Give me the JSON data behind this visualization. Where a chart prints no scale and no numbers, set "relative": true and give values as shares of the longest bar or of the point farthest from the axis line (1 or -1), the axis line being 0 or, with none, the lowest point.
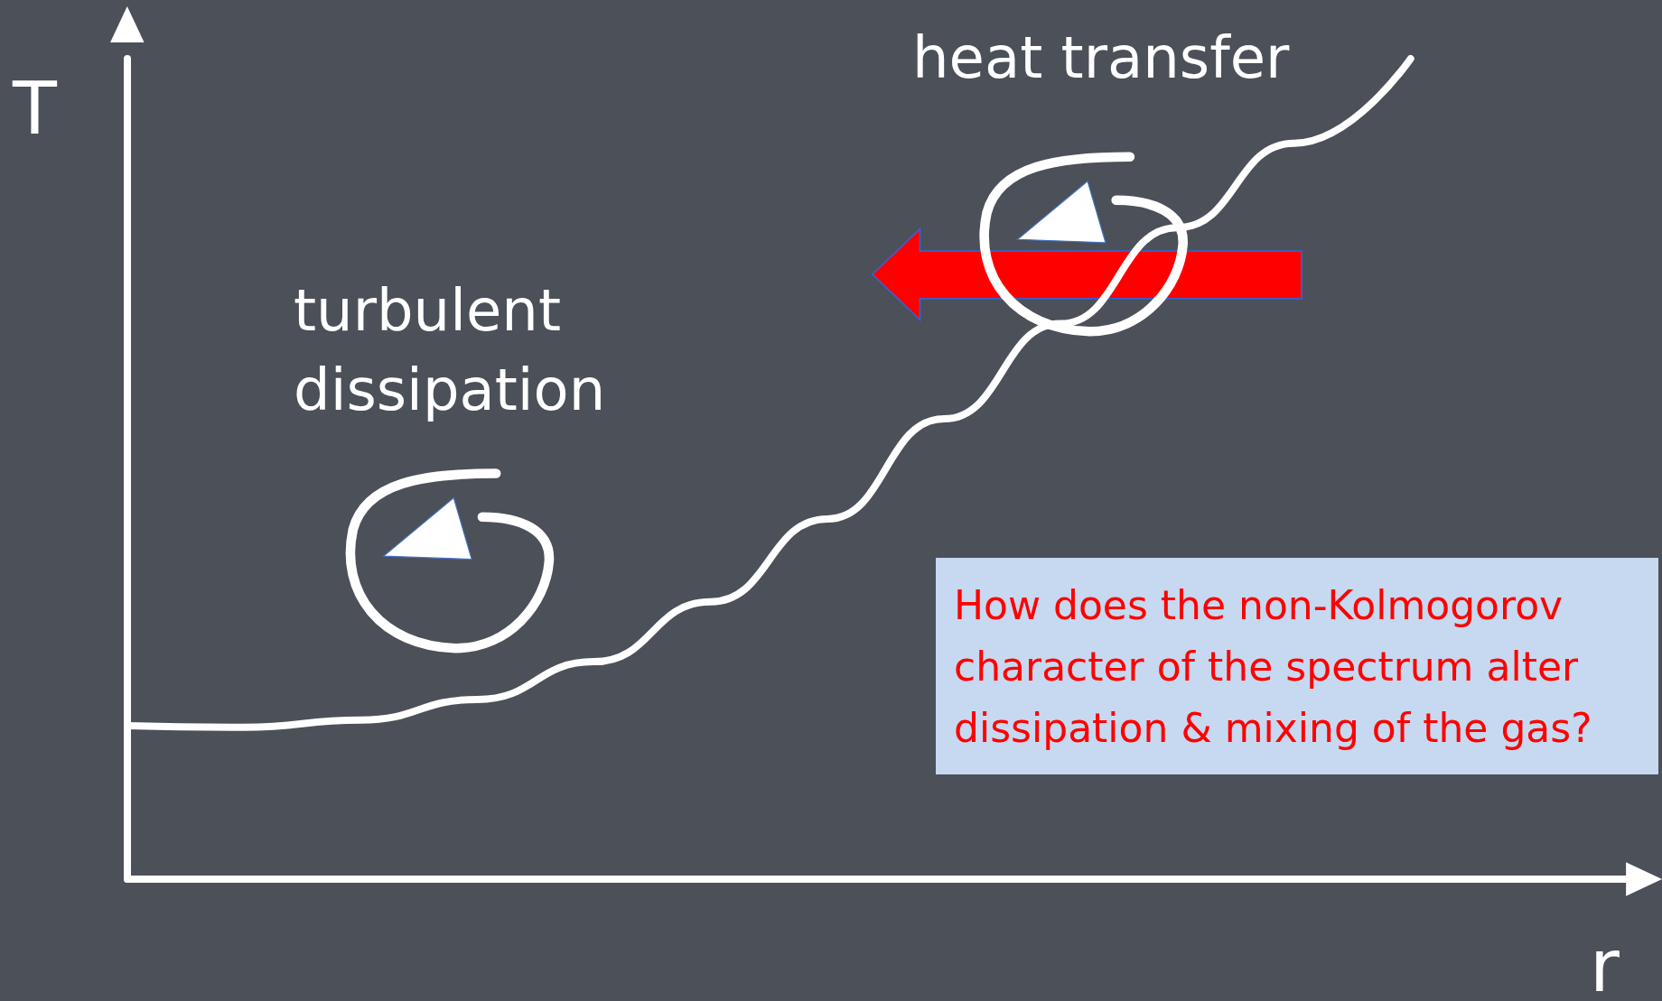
{
  "chart_data": {
    "type": "line",
    "relative": true,
    "xlabel": "r",
    "ylabel": "T",
    "categories": [
      null,
      null,
      null,
      null,
      null,
      null,
      null,
      null,
      null,
      null,
      null,
      null,
      null,
      null
    ],
    "series": [
      {
        "color": "#ffffff",
        "values": [
          0.187,
          0.185,
          0.194,
          0.219,
          0.265,
          0.338,
          0.439,
          0.561,
          0.677,
          0.794,
          0.897,
          1,
          null,
          null
        ]
      }
    ],
    "annotations": [
      "turbulent\ndissipation",
      "heat transfer",
      "How does the non-Kolmogorov character of the spectrum alter dissipation & mixing of the gas?"
    ],
    "line_style": "solid",
    "grid": false
  }
}
